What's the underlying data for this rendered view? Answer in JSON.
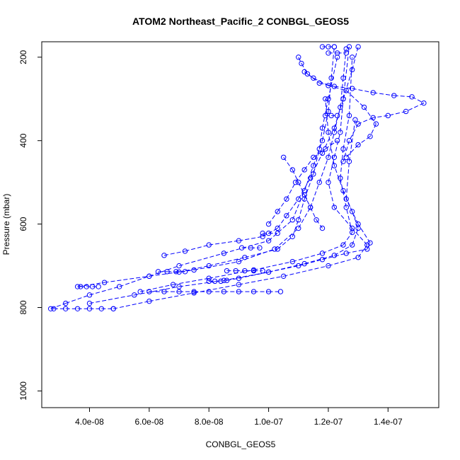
{
  "chart_data": {
    "type": "scatter",
    "title": "ATOM2 Northeast_Pacific_2 CONBGL_GEOS5",
    "xlabel": "CONBGL_GEOS5",
    "ylabel": "Pressure (mbar)",
    "xlim": [
      2.4e-08,
      1.57e-07
    ],
    "ylim": [
      1040,
      163
    ],
    "y_reversed": true,
    "grid": false,
    "legend": "none",
    "marker": "open-circle",
    "color": "#0000ff",
    "x_ticks": [
      4e-08,
      6e-08,
      8e-08,
      1e-07,
      1.2e-07,
      1.4e-07
    ],
    "x_tick_labels": [
      "4.0e-08",
      "6.0e-08",
      "8.0e-08",
      "1.0e-07",
      "1.2e-07",
      "1.4e-07"
    ],
    "y_ticks": [
      200,
      400,
      600,
      800,
      1000
    ],
    "y_tick_labels": [
      "200",
      "400",
      "600",
      "800",
      "1000"
    ],
    "series": [
      {
        "x": [
          2.7e-08,
          3.2e-08,
          4e-08,
          5e-08,
          6e-08,
          7e-08,
          8.5e-08,
          1e-07,
          1.08e-07,
          1.12e-07,
          1.15e-07,
          1.18e-07,
          1.2e-07,
          1.21e-07,
          1.22e-07
        ],
        "y": [
          803,
          790,
          770,
          750,
          725,
          700,
          670,
          640,
          590,
          520,
          460,
          400,
          330,
          250,
          175
        ]
      },
      {
        "x": [
          4.8e-08,
          6e-08,
          7.5e-08,
          9e-08,
          1.05e-07,
          1.2e-07,
          1.3e-07,
          1.33e-07,
          1.28e-07,
          1.22e-07,
          1.2e-07,
          1.22e-07,
          1.24e-07,
          1.25e-07,
          1.27e-07
        ],
        "y": [
          803,
          785,
          765,
          745,
          725,
          700,
          680,
          650,
          610,
          560,
          500,
          440,
          380,
          300,
          175
        ]
      },
      {
        "x": [
          3.6e-08,
          4.5e-08,
          6e-08,
          7.5e-08,
          9e-08,
          1.02e-07,
          1.1e-07,
          1.14e-07,
          1.17e-07,
          1.2e-07,
          1.22e-07,
          1.24e-07,
          1.25e-07,
          1.26e-07
        ],
        "y": [
          750,
          740,
          725,
          710,
          690,
          660,
          610,
          560,
          500,
          440,
          380,
          320,
          250,
          180
        ]
      },
      {
        "x": [
          5.7e-08,
          6.8e-08,
          8e-08,
          9.5e-08,
          1.08e-07,
          1.18e-07,
          1.25e-07,
          1.28e-07,
          1.26e-07,
          1.24e-07,
          1.25e-07,
          1.27e-07,
          1.28e-07
        ],
        "y": [
          762,
          745,
          730,
          710,
          690,
          670,
          650,
          620,
          560,
          490,
          420,
          340,
          200
        ]
      },
      {
        "x": [
          4e-08,
          5.5e-08,
          7e-08,
          8.5e-08,
          1e-07,
          1.12e-07,
          1.22e-07,
          1.28e-07,
          1.3e-07,
          1.28e-07,
          1.25e-07,
          1.22e-07,
          1.2e-07,
          1.19e-07
        ],
        "y": [
          790,
          770,
          750,
          735,
          715,
          695,
          675,
          650,
          610,
          570,
          520,
          460,
          380,
          300
        ]
      },
      {
        "x": [
          6.5e-08,
          7.2e-08,
          8e-08,
          9e-08,
          9.8e-08,
          1.03e-07,
          1.06e-07,
          1.1e-07,
          1.14e-07,
          1.18e-07,
          1.22e-07,
          1.25e-07,
          1.28e-07,
          1.3e-07
        ],
        "y": [
          675,
          665,
          650,
          640,
          630,
          610,
          580,
          540,
          490,
          430,
          370,
          300,
          230,
          175
        ]
      },
      {
        "x": [
          7e-08,
          8e-08,
          9.2e-08,
          1.03e-07,
          1.08e-07,
          1.1e-07,
          1.12e-07,
          1.15e-07,
          1.17e-07,
          1.18e-07,
          1.2e-07,
          1.23e-07
        ],
        "y": [
          715,
          700,
          680,
          660,
          630,
          590,
          540,
          480,
          420,
          370,
          300,
          200
        ]
      },
      {
        "x": [
          8.6e-08,
          9e-08,
          1e-07,
          1.1e-07,
          1.18e-07,
          1.26e-07,
          1.33e-07,
          1.34e-07,
          1.3e-07,
          1.26e-07,
          1.27e-07,
          1.29e-07
        ],
        "y": [
          735,
          730,
          715,
          700,
          685,
          670,
          660,
          645,
          600,
          540,
          450,
          350
        ]
      },
      {
        "x": [
          1.1e-07,
          1.11e-07,
          1.13e-07,
          1.17e-07,
          1.22e-07,
          1.28e-07,
          1.35e-07,
          1.42e-07,
          1.48e-07,
          1.52e-07,
          1.46e-07,
          1.4e-07,
          1.35e-07,
          1.3e-07,
          1.27e-07,
          1.25e-07
        ],
        "y": [
          200,
          215,
          240,
          262,
          270,
          275,
          285,
          292,
          295,
          310,
          330,
          340,
          345,
          360,
          400,
          450
        ]
      },
      {
        "x": [
          1.12e-07,
          1.15e-07,
          1.2e-07,
          1.26e-07,
          1.32e-07,
          1.36e-07,
          1.34e-07,
          1.3e-07,
          1.26e-07
        ],
        "y": [
          235,
          250,
          268,
          280,
          320,
          360,
          390,
          410,
          440
        ]
      },
      {
        "x": [
          1.05e-07,
          1.08e-07,
          1.1e-07,
          1.12e-07,
          1.14e-07,
          1.16e-07,
          1.18e-07
        ],
        "y": [
          440,
          470,
          500,
          530,
          560,
          590,
          610
        ]
      },
      {
        "x": [
          1e-07,
          1.03e-07,
          1.06e-07,
          1.09e-07,
          1.12e-07,
          1.15e-07,
          1.19e-07,
          1.23e-07
        ],
        "y": [
          600,
          570,
          540,
          500,
          470,
          440,
          420,
          400
        ]
      },
      {
        "x": [
          6e-08,
          6.5e-08,
          7e-08,
          7.5e-08,
          8e-08,
          8.5e-08,
          9e-08,
          9.5e-08,
          1e-07,
          1.04e-07
        ],
        "y": [
          762,
          762,
          762,
          762,
          762,
          762,
          762,
          762,
          762,
          762
        ]
      },
      {
        "x": [
          2.8e-08,
          3.2e-08,
          3.6e-08,
          4e-08,
          4.4e-08,
          4.8e-08
        ],
        "y": [
          803,
          803,
          803,
          803,
          803,
          803
        ]
      },
      {
        "x": [
          3.7e-08,
          3.9e-08,
          4.1e-08,
          4.3e-08
        ],
        "y": [
          750,
          750,
          750,
          750
        ]
      },
      {
        "x": [
          6.3e-08,
          6.6e-08,
          6.9e-08,
          7.2e-08
        ],
        "y": [
          714,
          714,
          714,
          714
        ]
      },
      {
        "x": [
          8e-08,
          8.2e-08,
          8.4e-08
        ],
        "y": [
          737,
          737,
          737
        ]
      },
      {
        "x": [
          8.6e-08,
          8.9e-08,
          9.2e-08,
          9.5e-08,
          9.8e-08
        ],
        "y": [
          712,
          712,
          712,
          712,
          712
        ]
      },
      {
        "x": [
          9.1e-08,
          9.4e-08,
          9.7e-08
        ],
        "y": [
          657,
          657,
          657
        ]
      },
      {
        "x": [
          9.8e-08,
          1e-07,
          1.03e-07
        ],
        "y": [
          622,
          622,
          622
        ]
      },
      {
        "x": [
          1.2e-07,
          1.23e-07,
          1.26e-07
        ],
        "y": [
          190,
          190,
          190
        ]
      },
      {
        "x": [
          1.18e-07,
          1.2e-07,
          1.22e-07
        ],
        "y": [
          175,
          175,
          175
        ]
      },
      {
        "x": [
          1.19e-07,
          1.21e-07,
          1.23e-07
        ],
        "y": [
          340,
          340,
          340
        ]
      }
    ]
  }
}
